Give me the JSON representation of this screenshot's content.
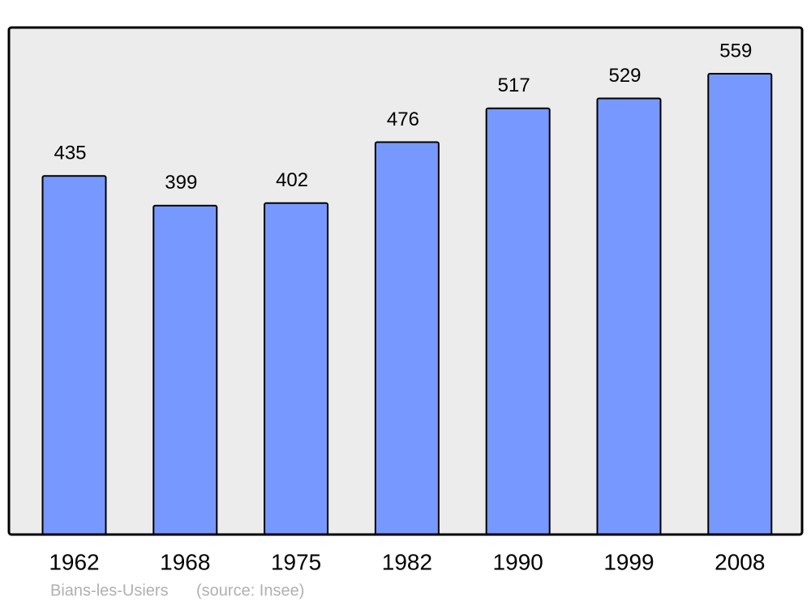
{
  "chart_data": {
    "type": "bar",
    "categories": [
      "1962",
      "1968",
      "1975",
      "1982",
      "1990",
      "1999",
      "2008"
    ],
    "values": [
      435,
      399,
      402,
      476,
      517,
      529,
      559
    ],
    "color": "#7799ff",
    "ylim": [
      0,
      615
    ],
    "caption": "Bians-les-Usiers",
    "source": "(source: Insee)"
  }
}
